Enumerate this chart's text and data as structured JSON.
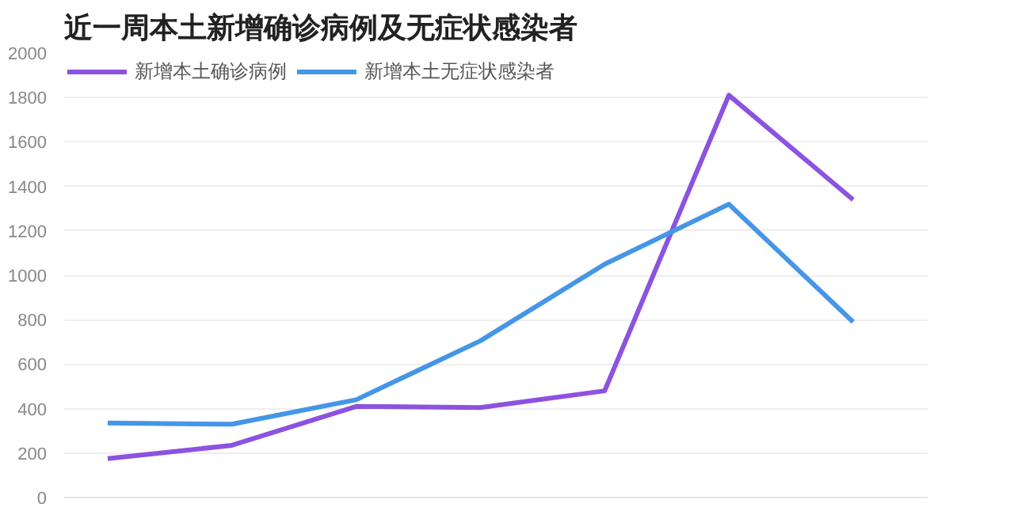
{
  "chart_data": {
    "type": "line",
    "title": "近一周本土新增确诊病例及无症状感染者",
    "categories": [
      null,
      null,
      null,
      null,
      null,
      null,
      null
    ],
    "series": [
      {
        "name": "新增本土确诊病例",
        "color": "#8c52e0",
        "values": [
          175,
          235,
          410,
          405,
          480,
          1810,
          1340
        ]
      },
      {
        "name": "新增本土无症状感染者",
        "color": "#4596e6",
        "values": [
          335,
          330,
          440,
          705,
          1050,
          1320,
          790
        ]
      }
    ],
    "ylim": [
      0,
      2000
    ],
    "yticks": [
      0,
      200,
      400,
      600,
      800,
      1000,
      1200,
      1400,
      1600,
      1800,
      2000
    ],
    "grid": "y",
    "legend": "top left",
    "marker": "none",
    "line_style": "solid"
  }
}
